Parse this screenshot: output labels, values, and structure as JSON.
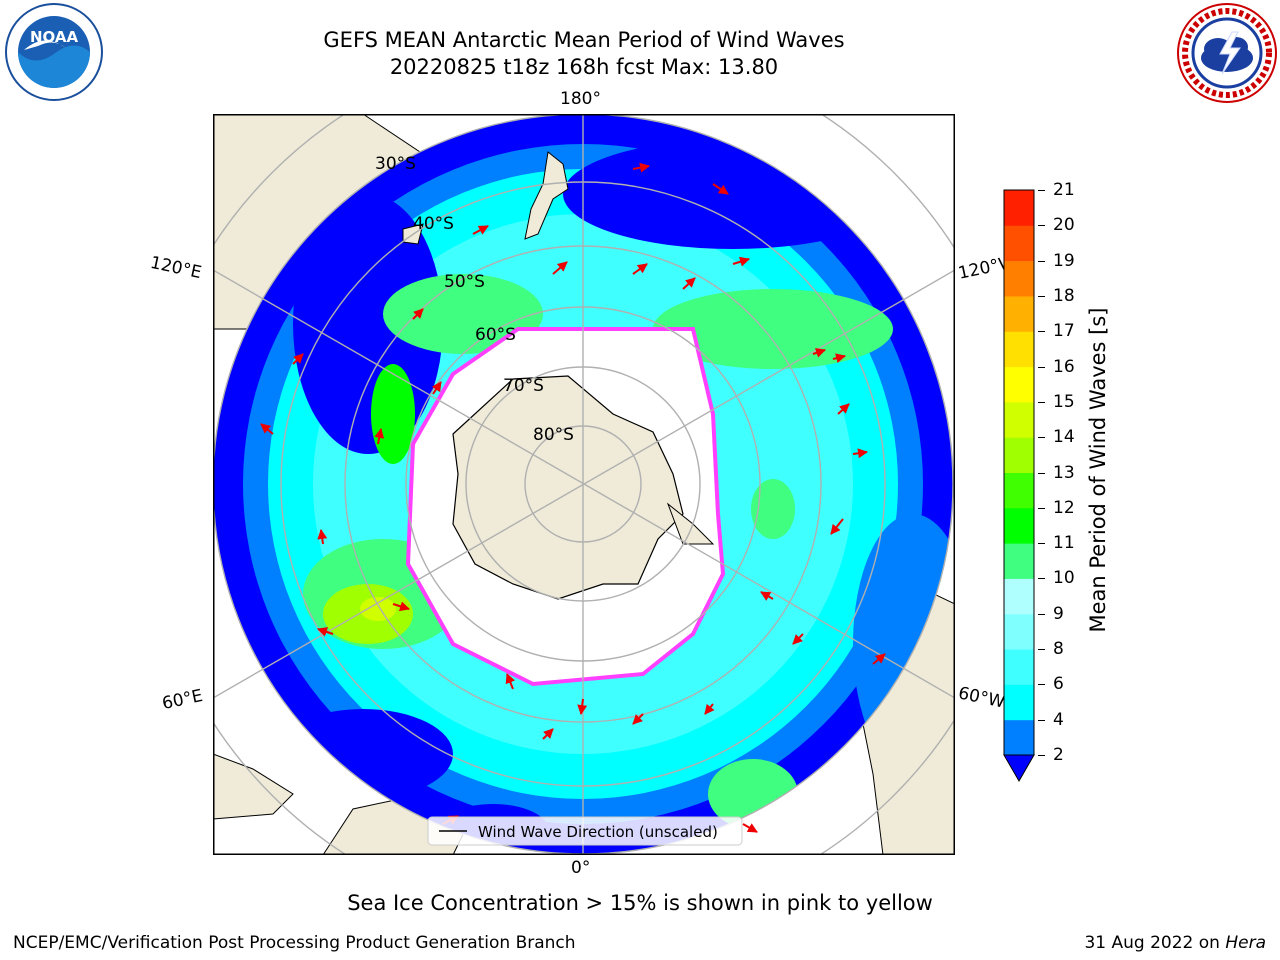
{
  "header": {
    "title_line1": "GEFS MEAN Antarctic Mean Period of Wind Waves",
    "title_line2": "20220825 t18z 168h fcst   Max: 13.80"
  },
  "logos": {
    "left": "noaa-logo",
    "right": "national-weather-service-logo"
  },
  "map": {
    "projection": "south-polar-stereographic",
    "lon_labels": {
      "top": "180°",
      "bottom": "0°",
      "upper_left": "120°E",
      "lower_left": "60°E",
      "upper_right": "120°W",
      "lower_right": "60°W"
    },
    "lat_labels": [
      "30°S",
      "40°S",
      "50°S",
      "60°S",
      "70°S",
      "80°S"
    ],
    "legend": {
      "label": "Wind Wave Direction (unscaled)"
    },
    "colors": {
      "land": "#efebd8",
      "ice_edge": "#ff40ff",
      "vector": "#ee0000",
      "grid": "#b0b0b0"
    }
  },
  "colorbar": {
    "label": "Mean Period of Wind Waves [s]",
    "ticks": [
      "2",
      "4",
      "6",
      "8",
      "9",
      "10",
      "11",
      "12",
      "13",
      "14",
      "15",
      "16",
      "17",
      "18",
      "19",
      "20",
      "21"
    ],
    "colors": [
      "#0000ff",
      "#0080ff",
      "#00ffff",
      "#40ffff",
      "#80ffff",
      "#b0ffff",
      "#40ff80",
      "#00ff00",
      "#40ff00",
      "#a0ff00",
      "#d0ff00",
      "#ffff00",
      "#ffe000",
      "#ffb000",
      "#ff8000",
      "#ff5000",
      "#ff2000",
      "#ff0000"
    ]
  },
  "footer": {
    "note": "Sea Ice Concentration > 15% is shown in pink to yellow",
    "credit": "NCEP/EMC/Verification Post Processing Product Generation Branch",
    "date": "31 Aug 2022 on ",
    "machine": "Hera"
  }
}
